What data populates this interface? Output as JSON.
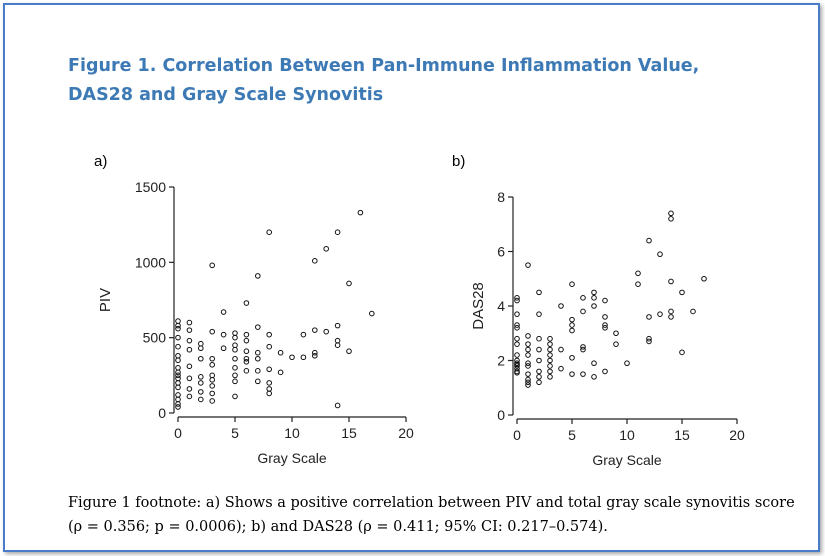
{
  "title": "Figure 1. Correlation Between Pan-Immune Inflammation Value, DAS28 and Gray Scale Synovitis",
  "footnote": "Figure 1 footnote: a) Shows a positive correlation between PIV and total gray scale synovitis score (ρ = 0.356; p = 0.0006); b) and DAS28 (ρ = 0.411; 95% CI: 0.217–0.574).",
  "chart_data": [
    {
      "panel_label": "a)",
      "type": "scatter",
      "title": "",
      "xlabel": "Gray Scale",
      "ylabel": "PIV",
      "xlim": [
        0,
        20
      ],
      "ylim": [
        0,
        1500
      ],
      "xticks": [
        "0",
        "5",
        "10",
        "15",
        "20"
      ],
      "yticks": [
        "0",
        "500",
        "1000",
        "1500"
      ],
      "grid": false,
      "x": [
        0,
        0,
        0,
        0,
        0,
        0,
        0,
        0,
        0,
        0,
        0,
        0,
        0,
        0,
        0,
        0,
        0,
        1,
        1,
        1,
        1,
        1,
        1,
        1,
        1,
        2,
        2,
        2,
        2,
        2,
        2,
        2,
        3,
        3,
        3,
        3,
        3,
        3,
        3,
        3,
        3,
        4,
        4,
        4,
        5,
        5,
        5,
        5,
        5,
        5,
        5,
        5,
        5,
        6,
        6,
        6,
        6,
        6,
        6,
        6,
        7,
        7,
        7,
        7,
        7,
        7,
        8,
        8,
        8,
        8,
        8,
        8,
        8,
        9,
        9,
        10,
        11,
        11,
        12,
        12,
        12,
        12,
        13,
        13,
        14,
        14,
        14,
        14,
        14,
        15,
        15,
        16,
        17
      ],
      "y": [
        610,
        580,
        560,
        500,
        440,
        380,
        350,
        300,
        270,
        250,
        230,
        200,
        170,
        120,
        90,
        60,
        40,
        600,
        550,
        480,
        420,
        310,
        230,
        160,
        110,
        460,
        430,
        360,
        240,
        200,
        140,
        90,
        980,
        540,
        360,
        320,
        250,
        220,
        180,
        130,
        80,
        670,
        520,
        430,
        530,
        500,
        450,
        420,
        360,
        300,
        250,
        210,
        110,
        730,
        520,
        480,
        410,
        360,
        340,
        280,
        910,
        570,
        400,
        360,
        280,
        210,
        1200,
        520,
        440,
        290,
        200,
        160,
        130,
        400,
        270,
        370,
        370,
        520,
        1010,
        550,
        400,
        380,
        1090,
        540,
        1200,
        580,
        480,
        450,
        50,
        860,
        410,
        1330,
        660
      ]
    },
    {
      "panel_label": "b)",
      "type": "scatter",
      "title": "",
      "xlabel": "Gray Scale",
      "ylabel": "DAS28",
      "xlim": [
        0,
        20
      ],
      "ylim": [
        0,
        8
      ],
      "xticks": [
        "0",
        "5",
        "10",
        "15",
        "20"
      ],
      "yticks": [
        "0",
        "2",
        "4",
        "6",
        "8"
      ],
      "grid": false,
      "x": [
        0,
        0,
        0,
        0,
        0,
        0,
        0,
        0,
        0,
        0,
        0,
        0,
        0,
        0,
        0,
        1,
        1,
        1,
        1,
        1,
        1,
        1,
        1,
        1,
        1,
        1,
        2,
        2,
        2,
        2,
        2,
        2,
        2,
        2,
        3,
        3,
        3,
        3,
        3,
        3,
        3,
        3,
        4,
        4,
        4,
        5,
        5,
        5,
        5,
        5,
        5,
        6,
        6,
        6,
        6,
        6,
        7,
        7,
        7,
        7,
        7,
        8,
        8,
        8,
        8,
        8,
        9,
        9,
        10,
        11,
        11,
        12,
        12,
        12,
        12,
        13,
        13,
        14,
        14,
        14,
        14,
        14,
        15,
        15,
        16,
        17
      ],
      "y": [
        4.3,
        4.2,
        3.7,
        3.3,
        3.2,
        2.8,
        2.6,
        2.2,
        2.0,
        1.9,
        1.85,
        1.8,
        1.7,
        1.6,
        1.55,
        5.5,
        2.9,
        2.6,
        2.4,
        2.2,
        1.9,
        1.8,
        1.5,
        1.3,
        1.2,
        1.1,
        4.5,
        3.7,
        2.8,
        2.4,
        2.0,
        1.6,
        1.4,
        1.2,
        2.8,
        2.6,
        2.4,
        2.2,
        2.0,
        1.8,
        1.6,
        1.4,
        4.0,
        2.4,
        1.7,
        4.8,
        3.5,
        3.3,
        3.1,
        2.1,
        1.5,
        4.3,
        3.8,
        2.5,
        2.4,
        1.5,
        4.5,
        4.3,
        4.0,
        1.9,
        1.4,
        4.2,
        3.6,
        3.3,
        3.2,
        1.6,
        3.0,
        2.6,
        1.9,
        5.2,
        4.8,
        6.4,
        3.6,
        2.8,
        2.7,
        5.9,
        3.7,
        7.4,
        7.2,
        4.9,
        3.8,
        3.6,
        4.5,
        2.3,
        3.8,
        5.0
      ]
    }
  ]
}
